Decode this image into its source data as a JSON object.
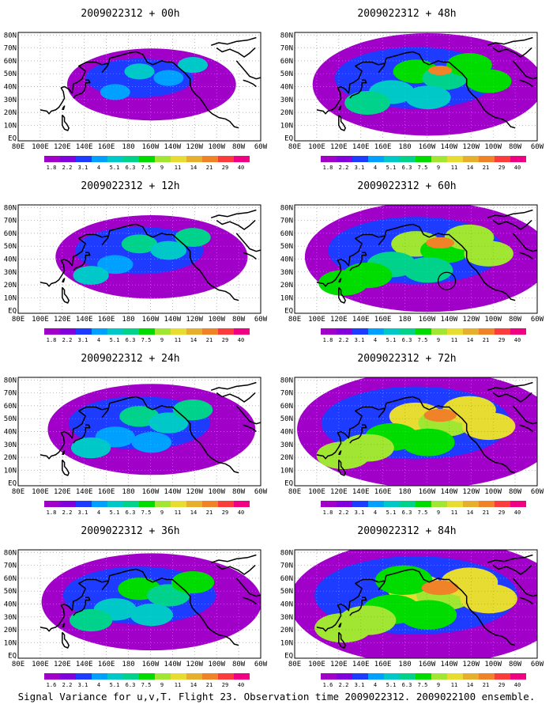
{
  "caption": "Signal Variance for u,v,T. Flight 23. Observation time 2009022312. 2009022100 ensemble.",
  "lat_labels": [
    "80N",
    "70N",
    "60N",
    "50N",
    "40N",
    "30N",
    "20N",
    "10N",
    "EQ"
  ],
  "lon_labels": [
    "80E",
    "100E",
    "120E",
    "140E",
    "160E",
    "180",
    "160W",
    "140W",
    "120W",
    "100W",
    "80W",
    "60W"
  ],
  "colorbar": {
    "labels": [
      "1.8",
      "2.2",
      "3.1",
      "4",
      "5.1",
      "6.3",
      "7.5",
      "9",
      "11",
      "14",
      "21",
      "29",
      "40"
    ],
    "labels_last_panel": [
      "1.6",
      "2.2",
      "3.1",
      "4",
      "5.1",
      "6.3",
      "7.5",
      "9",
      "11",
      "14",
      "21",
      "29",
      "40"
    ],
    "colors": [
      "#a000c8",
      "#8200dc",
      "#1e3cff",
      "#00a0ff",
      "#00c8c8",
      "#00d28c",
      "#00dc00",
      "#a0e632",
      "#e6dc32",
      "#e6af2d",
      "#f08228",
      "#fa3c3c",
      "#f00082"
    ]
  },
  "panels": [
    {
      "title": "2009022312 + 00h",
      "intensity": 0.15,
      "circle": false
    },
    {
      "title": "2009022312 + 48h",
      "intensity": 0.55,
      "circle": false
    },
    {
      "title": "2009022312 + 12h",
      "intensity": 0.3,
      "circle": false
    },
    {
      "title": "2009022312 + 60h",
      "intensity": 0.65,
      "circle": true
    },
    {
      "title": "2009022312 + 24h",
      "intensity": 0.4,
      "circle": false
    },
    {
      "title": "2009022312 + 72h",
      "intensity": 0.75,
      "circle": false
    },
    {
      "title": "2009022312 + 36h",
      "intensity": 0.48,
      "circle": false
    },
    {
      "title": "2009022312 + 84h",
      "intensity": 0.85,
      "circle": false
    }
  ]
}
